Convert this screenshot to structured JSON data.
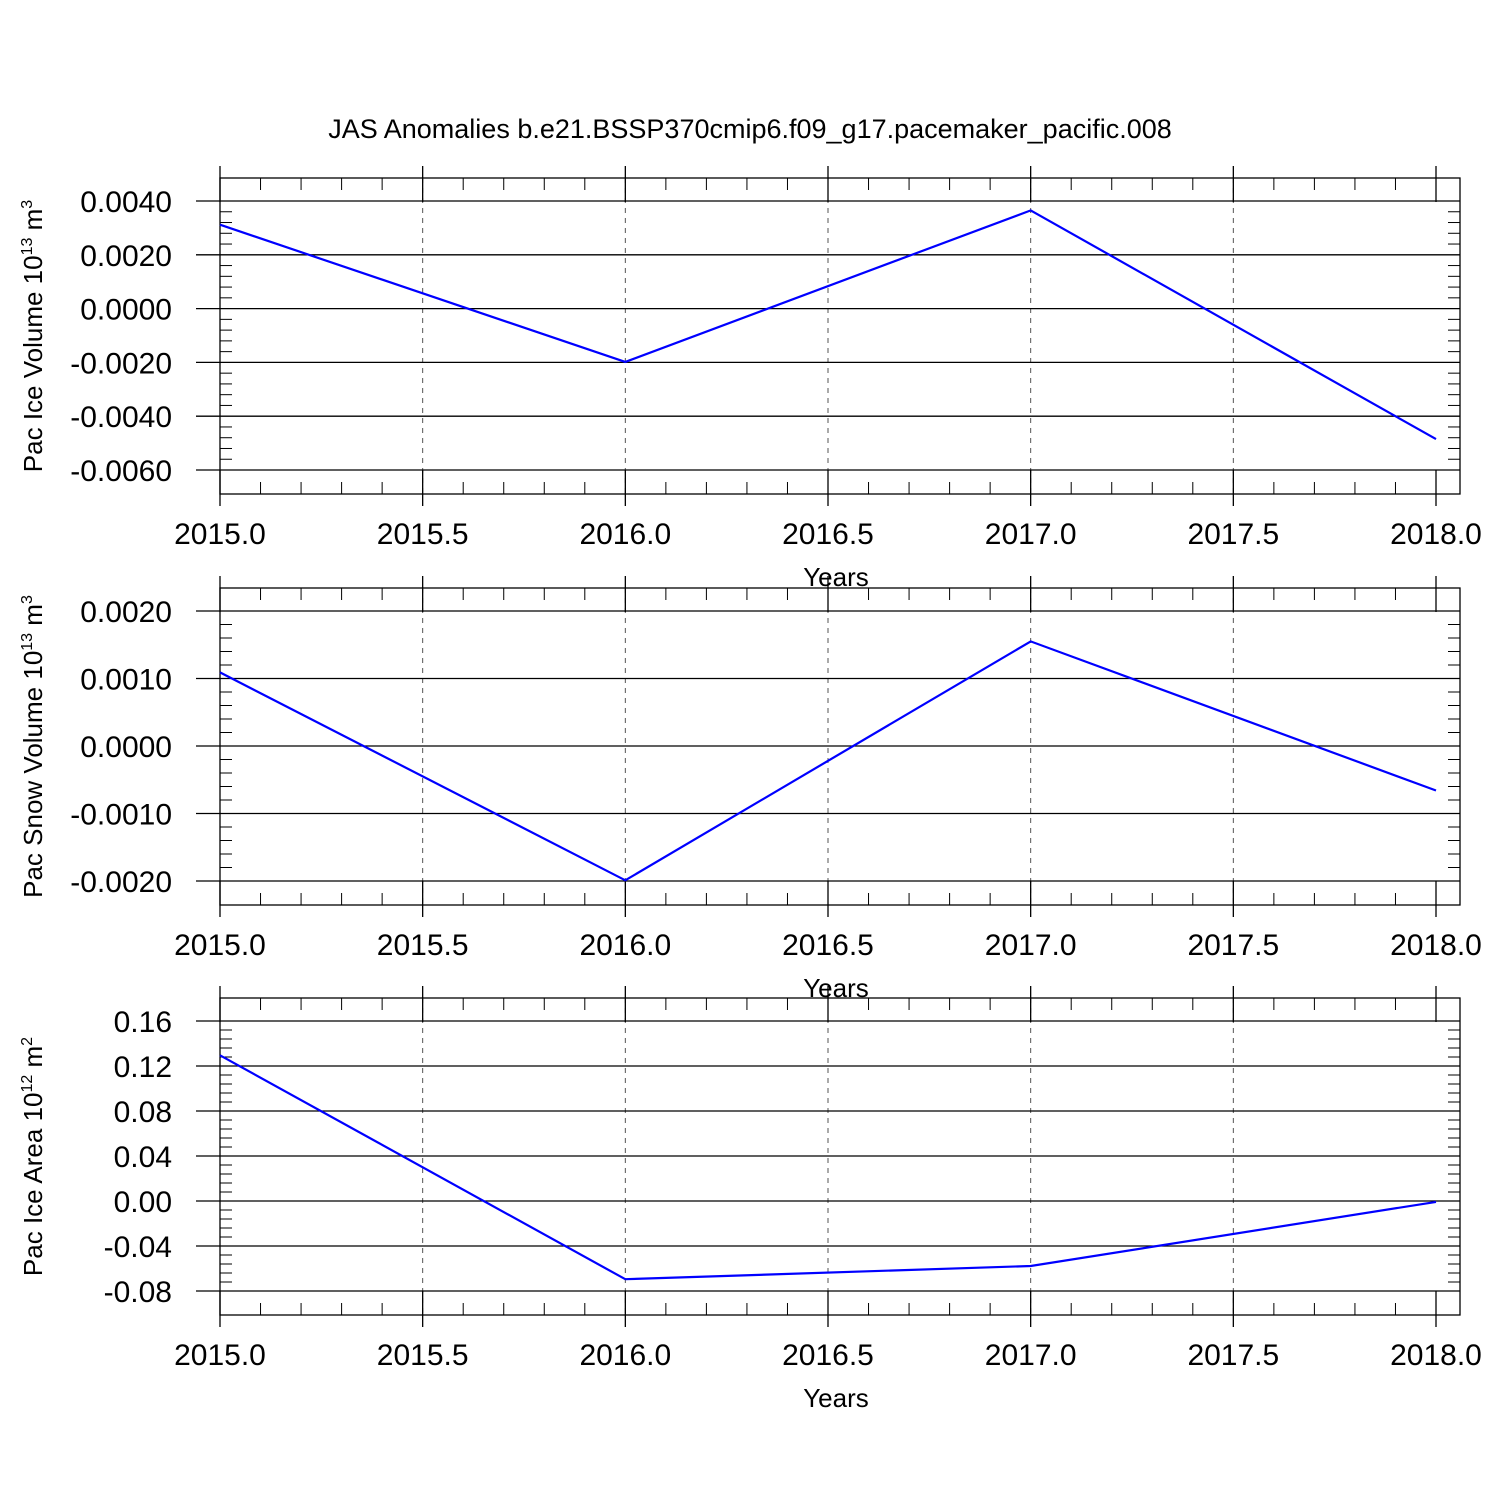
{
  "title": "JAS Anomalies b.e21.BSSP370cmip6.f09_g17.pacemaker_pacific.008",
  "colors": {
    "series": "#0000ff",
    "axis": "#000000",
    "grid": "#555555"
  },
  "chart_data": [
    {
      "type": "line",
      "ylabel": "Pac Ice Volume",
      "yunit_base": "10",
      "yunit_exp": "13",
      "yunit_sym": "m",
      "yunit_pow": "3",
      "xlabel": "Years",
      "xlim": [
        2015.0,
        2018.0
      ],
      "ylim": [
        -0.006,
        0.004
      ],
      "xticks": [
        "2015.0",
        "2015.5",
        "2016.0",
        "2016.5",
        "2017.0",
        "2017.5",
        "2018.0"
      ],
      "yticks": [
        "0.0040",
        "0.0020",
        "0.0000",
        "-0.0020",
        "-0.0040",
        "-0.0060"
      ],
      "ytick_values": [
        0.004,
        0.002,
        0.0,
        -0.002,
        -0.004,
        -0.006
      ],
      "x": [
        2015,
        2016,
        2017,
        2018
      ],
      "y": [
        0.00312,
        -0.00198,
        0.00365,
        -0.00485
      ],
      "grid": "vertical-dashed"
    },
    {
      "type": "line",
      "ylabel": "Pac Snow Volume",
      "yunit_base": "10",
      "yunit_exp": "13",
      "yunit_sym": "m",
      "yunit_pow": "3",
      "xlabel": "Years",
      "xlim": [
        2015.0,
        2018.0
      ],
      "ylim": [
        -0.002,
        0.002
      ],
      "xticks": [
        "2015.0",
        "2015.5",
        "2016.0",
        "2016.5",
        "2017.0",
        "2017.5",
        "2018.0"
      ],
      "yticks": [
        "0.0020",
        "0.0010",
        "0.0000",
        "-0.0010",
        "-0.0020"
      ],
      "ytick_values": [
        0.002,
        0.001,
        0.0,
        -0.001,
        -0.002
      ],
      "x": [
        2015,
        2016,
        2017,
        2018
      ],
      "y": [
        0.00109,
        -0.00199,
        0.00155,
        -0.00066
      ],
      "grid": "vertical-dashed"
    },
    {
      "type": "line",
      "ylabel": "Pac Ice Area",
      "yunit_base": "10",
      "yunit_exp": "12",
      "yunit_sym": "m",
      "yunit_pow": "2",
      "xlabel": "Years",
      "xlim": [
        2015.0,
        2018.0
      ],
      "ylim": [
        -0.08,
        0.16
      ],
      "xticks": [
        "2015.0",
        "2015.5",
        "2016.0",
        "2016.5",
        "2017.0",
        "2017.5",
        "2018.0"
      ],
      "yticks": [
        "0.16",
        "0.12",
        "0.08",
        "0.04",
        "0.00",
        "-0.04",
        "-0.08"
      ],
      "ytick_values": [
        0.16,
        0.12,
        0.08,
        0.04,
        0.0,
        -0.04,
        -0.08
      ],
      "x": [
        2015,
        2016,
        2017,
        2018
      ],
      "y": [
        0.1295,
        -0.0695,
        -0.0578,
        -0.0008
      ],
      "grid": "vertical-dashed"
    }
  ]
}
